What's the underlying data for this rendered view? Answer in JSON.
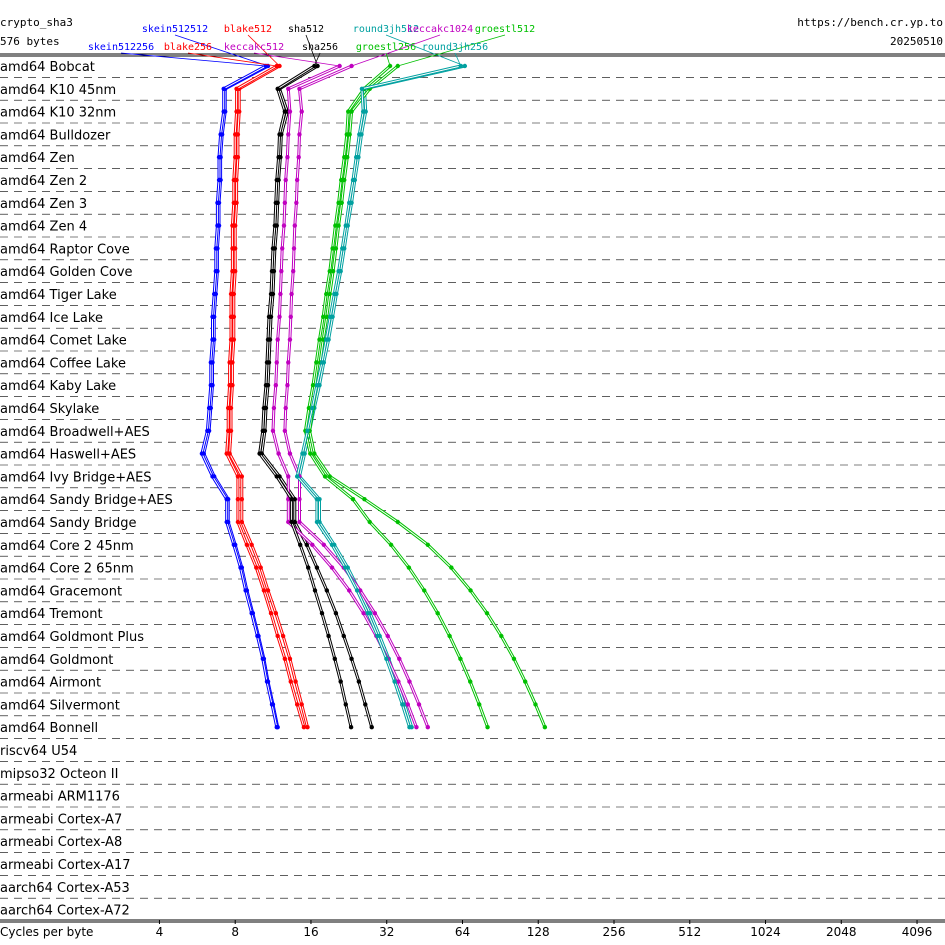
{
  "chart_data": {
    "type": "line",
    "title": "crypto_sha3",
    "subtitle": "576 bytes",
    "source": "https://bench.cr.yp.to",
    "date": "20250510",
    "xlabel": "Cycles per byte",
    "xscale": "log",
    "xlim": [
      0.93,
      5290
    ],
    "xticks": [
      4,
      8,
      16,
      32,
      64,
      128,
      256,
      512,
      1024,
      2048,
      4096
    ],
    "categories": [
      "amd64 Bobcat",
      "amd64 K10 45nm",
      "amd64 K10 32nm",
      "amd64 Bulldozer",
      "amd64 Zen",
      "amd64 Zen 2",
      "amd64 Zen 3",
      "amd64 Zen 4",
      "amd64 Raptor Cove",
      "amd64 Golden Cove",
      "amd64 Tiger Lake",
      "amd64 Ice Lake",
      "amd64 Comet Lake",
      "amd64 Coffee Lake",
      "amd64 Kaby Lake",
      "amd64 Skylake",
      "amd64 Broadwell+AES",
      "amd64 Haswell+AES",
      "amd64 Ivy Bridge+AES",
      "amd64 Sandy Bridge+AES",
      "amd64 Sandy Bridge",
      "amd64 Core 2 45nm",
      "amd64 Core 2 65nm",
      "amd64 Gracemont",
      "amd64 Tremont",
      "amd64 Goldmont Plus",
      "amd64 Goldmont",
      "amd64 Airmont",
      "amd64 Silvermont",
      "amd64 Bonnell",
      "riscv64 U54",
      "mipso32 Octeon II",
      "armeabi ARM1176",
      "armeabi Cortex-A7",
      "armeabi Cortex-A8",
      "armeabi Cortex-A17",
      "aarch64 Cortex-A53",
      "aarch64 Cortex-A72"
    ],
    "series": [
      {
        "name": "skein512512",
        "color": "#0000ff",
        "values": [
          10.8,
          7.3,
          7.3,
          7.1,
          7.0,
          7.0,
          6.9,
          6.9,
          6.8,
          6.8,
          6.7,
          6.6,
          6.6,
          6.5,
          6.5,
          6.4,
          6.3,
          6.0,
          6.6,
          7.5,
          7.5,
          8.0,
          8.5,
          8.9,
          9.4,
          9.9,
          10.4,
          10.8,
          11.3,
          11.8,
          null,
          null,
          null,
          null,
          null,
          null,
          null,
          null
        ]
      },
      {
        "name": "blake512",
        "color": "#ff0000",
        "values": [
          12.0,
          8.3,
          8.3,
          8.2,
          8.2,
          8.1,
          8.1,
          8.0,
          8.0,
          8.0,
          7.9,
          7.9,
          7.9,
          7.8,
          7.8,
          7.7,
          7.7,
          7.6,
          8.5,
          8.5,
          8.5,
          9.3,
          10.1,
          10.8,
          11.6,
          12.4,
          13.2,
          13.9,
          14.7,
          15.5,
          null,
          null,
          null,
          null,
          null,
          null,
          null,
          null
        ]
      },
      {
        "name": "sha512",
        "color": "#000000",
        "values": [
          17.0,
          12.0,
          12.9,
          12.2,
          12.1,
          11.9,
          11.8,
          11.7,
          11.5,
          11.4,
          11.3,
          11.1,
          11.0,
          10.9,
          10.8,
          10.6,
          10.5,
          10.2,
          12.0,
          13.8,
          13.8,
          15.4,
          16.9,
          18.5,
          20.1,
          21.6,
          23.2,
          24.8,
          26.3,
          27.9,
          null,
          null,
          null,
          null,
          null,
          null,
          null,
          null
        ]
      },
      {
        "name": "round3jh512",
        "color": "#00a0a0",
        "values": [
          65.4,
          26.1,
          26.4,
          25.4,
          24.7,
          23.9,
          23.2,
          22.4,
          21.7,
          21.0,
          20.2,
          19.5,
          18.8,
          18.0,
          17.3,
          16.5,
          15.8,
          15.1,
          14.4,
          17.3,
          17.3,
          19.8,
          22.4,
          24.9,
          27.5,
          30.0,
          32.6,
          35.1,
          37.7,
          40.2,
          null,
          null,
          null,
          null,
          null,
          null,
          null,
          null
        ]
      },
      {
        "name": "keccakc1024",
        "color": "#c000c0",
        "values": [
          23.2,
          14.4,
          14.7,
          14.4,
          14.3,
          14.1,
          14.0,
          13.8,
          13.7,
          13.6,
          13.4,
          13.3,
          13.2,
          13.0,
          12.9,
          12.7,
          12.6,
          13.2,
          14.4,
          14.4,
          14.4,
          18.0,
          21.6,
          25.1,
          28.7,
          32.3,
          35.9,
          39.4,
          43.0,
          46.6,
          null,
          null,
          null,
          null,
          null,
          null,
          null,
          null
        ]
      },
      {
        "name": "groestl512",
        "color": "#00c000",
        "values": [
          35.4,
          27.4,
          23.2,
          22.8,
          22.3,
          21.7,
          21.2,
          20.6,
          20.1,
          19.6,
          19.0,
          18.5,
          17.9,
          17.4,
          16.9,
          16.3,
          15.8,
          16.5,
          19.0,
          26.1,
          35.4,
          46.6,
          57.8,
          68.9,
          80.1,
          91.3,
          102.5,
          113.6,
          124.8,
          136,
          null,
          null,
          null,
          null,
          null,
          null,
          null,
          null
        ]
      },
      {
        "name": "skein512256",
        "color": "#0000ff",
        "values": [
          10.6,
          7.2,
          7.2,
          7.0,
          6.9,
          6.9,
          6.8,
          6.8,
          6.7,
          6.7,
          6.6,
          6.5,
          6.5,
          6.4,
          6.4,
          6.3,
          6.2,
          5.9,
          6.5,
          7.4,
          7.4,
          7.9,
          8.4,
          8.8,
          9.3,
          9.8,
          10.3,
          10.7,
          11.2,
          11.7,
          null,
          null,
          null,
          null,
          null,
          null,
          null,
          null
        ]
      },
      {
        "name": "blake256",
        "color": "#ff0000",
        "values": [
          11.7,
          8.1,
          8.1,
          8.0,
          8.0,
          7.9,
          7.9,
          7.8,
          7.8,
          7.8,
          7.7,
          7.7,
          7.7,
          7.6,
          7.6,
          7.5,
          7.5,
          7.4,
          8.2,
          8.2,
          8.2,
          8.9,
          9.7,
          10.4,
          11.1,
          11.8,
          12.6,
          13.3,
          14.1,
          15.0,
          null,
          null,
          null,
          null,
          null,
          null,
          null,
          null
        ]
      },
      {
        "name": "keccakc512",
        "color": "#c000c0",
        "values": [
          20.8,
          13.0,
          13.2,
          13.0,
          12.9,
          12.7,
          12.6,
          12.5,
          12.3,
          12.2,
          12.1,
          12.0,
          11.8,
          11.7,
          11.6,
          11.4,
          11.3,
          11.9,
          13.0,
          13.0,
          13.0,
          16.2,
          19.4,
          22.7,
          25.9,
          29.1,
          32.3,
          35.6,
          38.8,
          42.0,
          null,
          null,
          null,
          null,
          null,
          null,
          null,
          null
        ]
      },
      {
        "name": "sha256",
        "color": "#000000",
        "values": [
          16.5,
          11.8,
          12.6,
          12.0,
          11.9,
          11.7,
          11.6,
          11.5,
          11.3,
          11.2,
          11.1,
          10.9,
          10.8,
          10.7,
          10.6,
          10.4,
          10.3,
          10.0,
          11.7,
          13.4,
          13.4,
          14.5,
          15.6,
          16.6,
          17.7,
          18.8,
          19.9,
          21.0,
          22.0,
          23.1,
          null,
          null,
          null,
          null,
          null,
          null,
          null,
          null
        ]
      },
      {
        "name": "groestl256",
        "color": "#00c000",
        "values": [
          33,
          26,
          22.5,
          22.2,
          21.7,
          21.1,
          20.6,
          20.0,
          19.5,
          19.0,
          18.4,
          17.9,
          17.3,
          16.8,
          16.3,
          15.7,
          15.2,
          15.9,
          18.2,
          23.5,
          27.4,
          33.3,
          39.2,
          45.1,
          51.0,
          56.9,
          62.8,
          68.7,
          74.6,
          80.5,
          null,
          null,
          null,
          null,
          null,
          null,
          null,
          null
        ]
      },
      {
        "name": "round3jh256",
        "color": "#00a0a0",
        "values": [
          63,
          25.5,
          25.8,
          24.9,
          24.2,
          23.5,
          22.7,
          22.0,
          21.3,
          20.6,
          19.8,
          19.1,
          18.4,
          17.7,
          16.9,
          16.2,
          15.5,
          14.8,
          14.1,
          16.9,
          16.9,
          19.4,
          21.9,
          24.4,
          26.9,
          29.4,
          31.9,
          34.4,
          36.9,
          39.4,
          null,
          null,
          null,
          null,
          null,
          null,
          null,
          null
        ]
      }
    ]
  }
}
